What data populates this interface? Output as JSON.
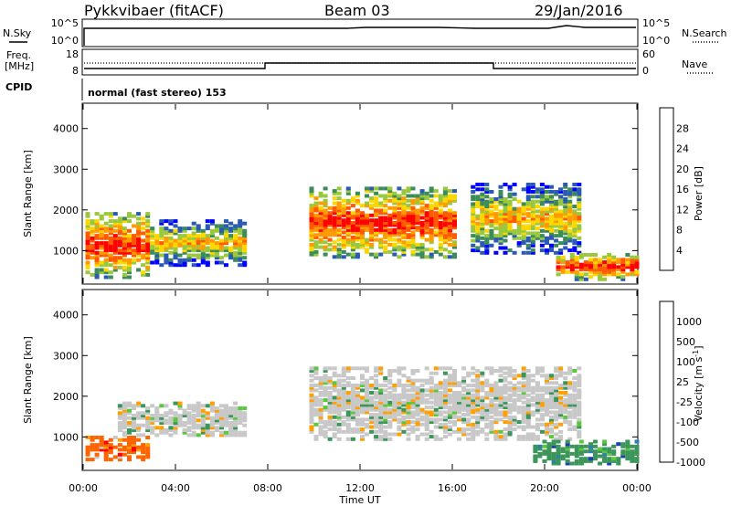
{
  "header": {
    "station": "Pykkvibaer (fitACF)",
    "beam": "Beam 03",
    "date": "29/Jan/2016"
  },
  "summary": {
    "left_labels": [
      "N.Sky",
      "Freq.",
      "[MHz]",
      "CPID"
    ],
    "right_labels": [
      "N.Search",
      "Nave"
    ],
    "sky_ticks": [
      "10^5",
      "10^0"
    ],
    "search_ticks": [
      "10^5",
      "10^0"
    ],
    "freq_ticks": [
      "18",
      "8"
    ],
    "nave_ticks": [
      "60",
      "0"
    ],
    "cpid_text": "normal (fast stereo) 153"
  },
  "chart_data": [
    {
      "type": "heatmap",
      "name": "power",
      "xlabel": "",
      "ylabel": "Slant Range [km]",
      "x_range_hours": [
        0,
        24
      ],
      "ylim": [
        200,
        4600
      ],
      "y_ticks": [
        1000,
        2000,
        3000,
        4000
      ],
      "colorbar": {
        "label": "Power [dB]",
        "ticks": [
          "28",
          "24",
          "20",
          "16",
          "12",
          "8",
          "4"
        ],
        "colors": [
          "#ff0000",
          "#ff5a00",
          "#ff9b00",
          "#ffd700",
          "#9ac83c",
          "#3c8c5a",
          "#2a5ab4",
          "#0000ff"
        ]
      },
      "regions": [
        {
          "x": [
            0.1,
            2.9
          ],
          "y": [
            300,
            1900
          ],
          "level": "high"
        },
        {
          "x": [
            2.9,
            7.0
          ],
          "y": [
            600,
            1700
          ],
          "level": "medium"
        },
        {
          "x": [
            9.8,
            16.1
          ],
          "y": [
            800,
            2500
          ],
          "level": "high"
        },
        {
          "x": [
            16.8,
            21.4
          ],
          "y": [
            900,
            2600
          ],
          "level": "medium"
        },
        {
          "x": [
            20.5,
            24
          ],
          "y": [
            250,
            900
          ],
          "level": "high"
        }
      ]
    },
    {
      "type": "heatmap",
      "name": "velocity",
      "xlabel": "Time UT",
      "ylabel": "Slant Range [km]",
      "x_ticks": [
        "00:00",
        "04:00",
        "08:00",
        "12:00",
        "16:00",
        "20:00",
        "00:00"
      ],
      "ylim": [
        200,
        4600
      ],
      "y_ticks": [
        1000,
        2000,
        3000,
        4000
      ],
      "colorbar": {
        "label": "Velocity [m s^-1]",
        "ticks": [
          "1000",
          "500",
          "100",
          "25",
          "-25",
          "-100",
          "-500",
          "-1000"
        ],
        "colors": [
          "#1e3cb4",
          "#2e7db8",
          "#3c965a",
          "#5ac83c",
          "#c8c8c8",
          "#ffa000",
          "#ff6400",
          "#ff0000"
        ]
      },
      "regions": [
        {
          "x": [
            0.1,
            2.8
          ],
          "y": [
            400,
            1000
          ],
          "dominant": "-500"
        },
        {
          "x": [
            1.5,
            7.0
          ],
          "y": [
            1000,
            1800
          ],
          "dominant": "0"
        },
        {
          "x": [
            9.8,
            21.5
          ],
          "y": [
            900,
            2700
          ],
          "dominant": "0"
        },
        {
          "x": [
            19.5,
            24
          ],
          "y": [
            300,
            900
          ],
          "dominant": "100"
        }
      ]
    }
  ]
}
